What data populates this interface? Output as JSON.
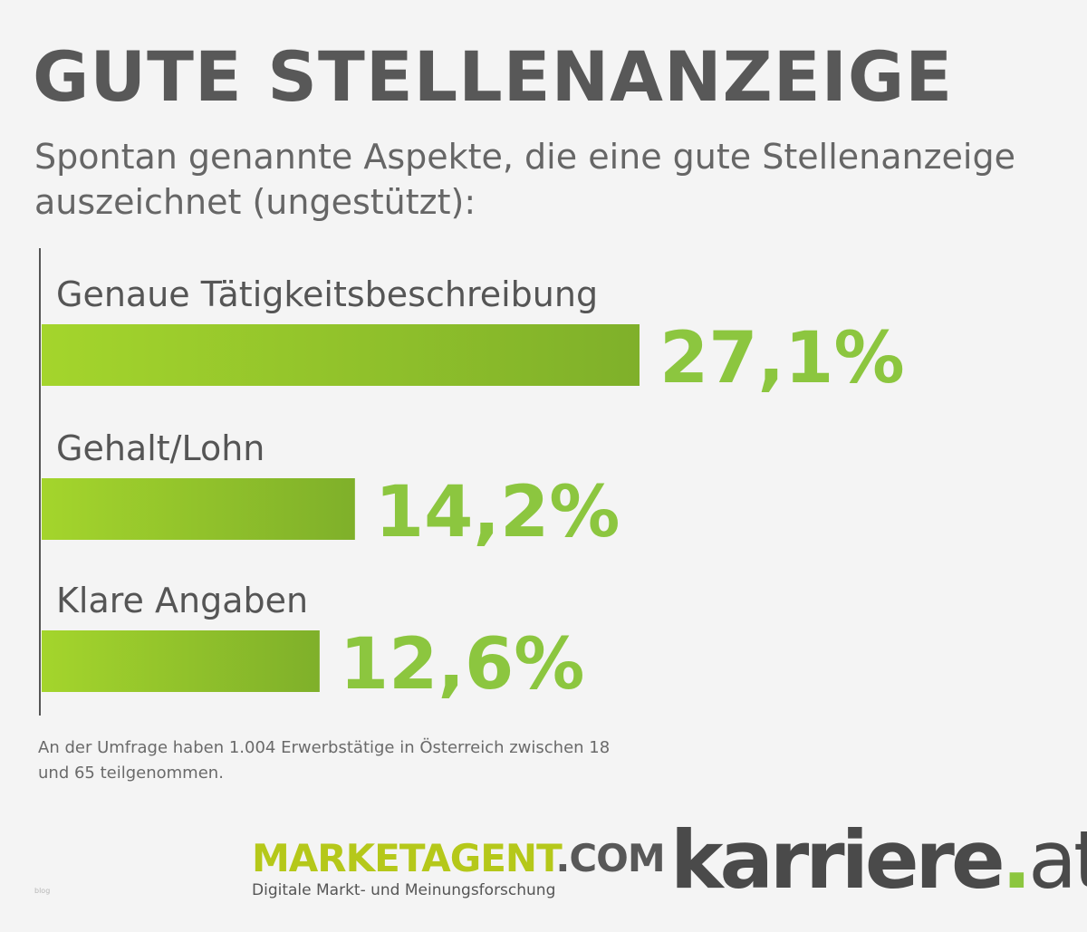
{
  "header": {
    "title": "GUTE STELLENANZEIGE",
    "subtitle": "Spontan genannte Aspekte, die eine gute Stellenanzeige auszeichnet (ungestützt):"
  },
  "chart_data": {
    "type": "bar",
    "orientation": "horizontal",
    "categories": [
      "Genaue Tätigkeitsbeschreibung",
      "Gehalt/Lohn",
      "Klare Angaben"
    ],
    "values": [
      27.1,
      14.2,
      12.6
    ],
    "value_labels": [
      "27,1%",
      "14,2%",
      "12,6%"
    ],
    "unit": "%",
    "xlim": [
      0,
      30
    ],
    "grid": false,
    "colors": {
      "bar_start": "#a4d52c",
      "bar_end": "#7fb02a",
      "value_text": "#8cc63f",
      "axis": "#555555",
      "category_text": "#555555"
    }
  },
  "footnote": "An der Umfrage haben 1.004 Erwerbstätige in Österreich zwischen 18 und 65 teilgenommen.",
  "logos": {
    "marketagent": {
      "brand": "MARKETAGENT",
      "tld": ".COM",
      "tagline": "Digitale Markt- und Meinungsforschung"
    },
    "karriere": {
      "name": "karriere",
      "dot": ".",
      "tld": "at"
    }
  },
  "watermark": "blog"
}
